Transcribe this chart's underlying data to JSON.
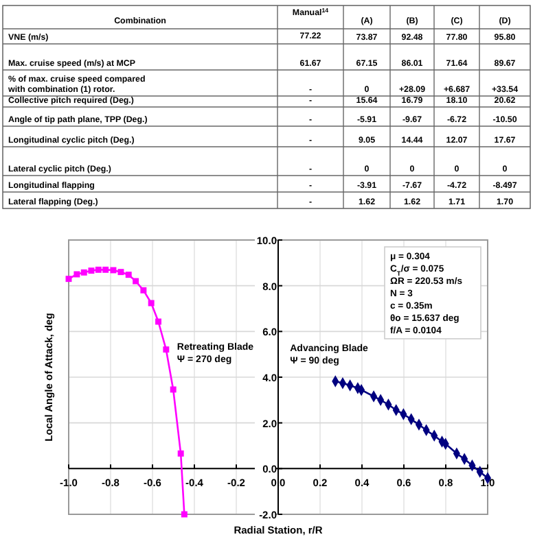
{
  "chart_data": [
    {
      "type": "other",
      "categories": [
        "Combination",
        "Manual$^{14}$",
        "(A)",
        "(B)",
        "(C)",
        "(D)"
      ],
      "y_categories": [
        "VNE (m/s)",
        "Max. cruise speed  (m/s) at MCP",
        "% of max. cruise speed compared\nwith combination (1) rotor.",
        "Collective pitch required (Deg.)",
        "Angle of tip path plane, TPP (Deg.)",
        "Longitudinal cyclic pitch (Deg.)",
        "Lateral cyclic pitch (Deg.)",
        "Longitudinal flapping",
        "Lateral flapping (Deg.)"
      ],
      "cell_labels": [
        [
          "77.22",
          "73.87",
          "92.48",
          "77.80",
          "95.80"
        ],
        [
          "61.67",
          "67.15",
          "86.01",
          "71.64",
          "89.67"
        ],
        [
          "-",
          "0",
          "+28.09",
          "+6.687",
          "+33.54"
        ],
        [
          "-",
          "15.64",
          "16.79",
          "18.10",
          "20.62"
        ],
        [
          "-",
          "-5.91",
          "-9.67",
          "-6.72",
          "-10.50"
        ],
        [
          "-",
          "9.05",
          "14.44",
          "12.07",
          "17.67"
        ],
        [
          "-",
          "0",
          "0",
          "0",
          "0"
        ],
        [
          "-",
          "-3.91",
          "-7.67",
          "-4.72",
          "-8.497"
        ],
        [
          "-",
          "1.62",
          "1.62",
          "1.71",
          "1.70"
        ]
      ]
    },
    {
      "type": "line",
      "xlabel": "Radial Station, r/R",
      "ylabel": "Local Angle of Attack, deg",
      "xlim": [
        -1,
        1
      ],
      "xticks": [
        {
          "value": -1,
          "label": "-1.0"
        },
        -0.8,
        -0.6,
        -0.4,
        -0.2,
        {
          "value": 0,
          "label": "0.0"
        },
        0.2,
        0.4,
        0.6,
        0.8,
        {
          "value": 1,
          "label": "1.0"
        }
      ],
      "ylim": [
        -2,
        10
      ],
      "yticks": [
        {
          "value": -2,
          "label": "-2.0"
        },
        {
          "value": 0,
          "label": "0.0"
        },
        {
          "value": 2,
          "label": "2.0"
        },
        {
          "value": 4,
          "label": "4.0"
        },
        {
          "value": 6,
          "label": "6.0"
        },
        {
          "value": 8,
          "label": "8.0"
        },
        {
          "value": 10,
          "label": "10.0"
        }
      ],
      "grid": true,
      "line_style": "solid",
      "series": [
        {
          "color": "#ff00ff",
          "marker": "square",
          "x": [
            -1.0,
            -0.961,
            -0.927,
            -0.892,
            -0.858,
            -0.824,
            -0.787,
            -0.751,
            -0.714,
            -0.68,
            -0.643,
            -0.606,
            -0.572,
            -0.535,
            -0.501,
            -0.465,
            -0.448
          ],
          "values": [
            8.3,
            8.5,
            8.58,
            8.66,
            8.7,
            8.7,
            8.68,
            8.6,
            8.48,
            8.2,
            7.8,
            7.24,
            6.43,
            5.21,
            3.46,
            0.66,
            -2.0
          ]
        },
        {
          "color": "#000080",
          "marker": "diamond",
          "x": [
            0.273,
            0.308,
            0.343,
            0.38,
            0.397,
            0.456,
            0.489,
            0.526,
            0.563,
            0.598,
            0.635,
            0.672,
            0.707,
            0.745,
            0.782,
            0.799,
            0.852,
            0.889,
            0.926,
            0.963,
            1.0
          ],
          "values": [
            3.82,
            3.74,
            3.64,
            3.52,
            3.44,
            3.16,
            3.0,
            2.8,
            2.56,
            2.38,
            2.16,
            1.92,
            1.68,
            1.44,
            1.18,
            1.08,
            0.66,
            0.42,
            0.14,
            -0.14,
            -0.42
          ]
        }
      ],
      "annotations": [
        {
          "text": "Retreating Blade\nΨ = 270 deg",
          "x": -0.535,
          "y": 5.21
        },
        {
          "text": "Advancing Blade\nΨ = 90 deg",
          "x": 0.273,
          "y": 3.82
        },
        "μ = 0.304",
        "C$_{T}$/σ = 0.075",
        "ΩR = 220.53 m/s",
        "N = 3",
        "c = 0.35m",
        "θo = 15.637 deg",
        "f/A = 0.0104"
      ]
    }
  ]
}
